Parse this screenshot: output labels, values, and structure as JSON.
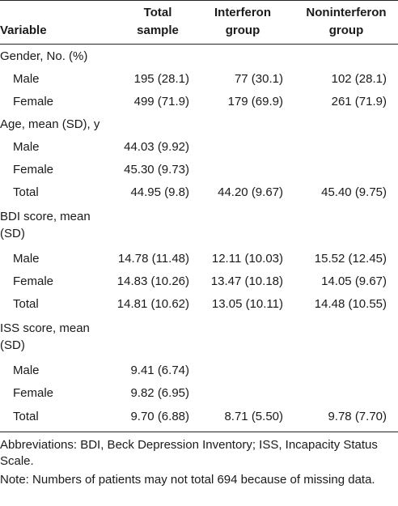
{
  "header": {
    "variable": "Variable",
    "col1": "Total sample",
    "col2": "Interferon group",
    "col3": "Noninterferon group"
  },
  "rows": [
    {
      "label": "Gender, No. (%)",
      "c1": "",
      "c2": "",
      "c3": ""
    },
    {
      "label": "Male",
      "c1": "195 (28.1)",
      "c2": "77 (30.1)",
      "c3": "102 (28.1)"
    },
    {
      "label": "Female",
      "c1": "499 (71.9)",
      "c2": "179 (69.9)",
      "c3": "261 (71.9)"
    },
    {
      "label": "Age, mean (SD), y",
      "c1": "",
      "c2": "",
      "c3": ""
    },
    {
      "label": "Male",
      "c1": "44.03 (9.92)",
      "c2": "",
      "c3": ""
    },
    {
      "label": "Female",
      "c1": "45.30 (9.73)",
      "c2": "",
      "c3": ""
    },
    {
      "label": "Total",
      "c1": "44.95 (9.8)",
      "c2": "44.20 (9.67)",
      "c3": "45.40 (9.75)"
    },
    {
      "label": "BDI score, mean (SD)",
      "c1": "",
      "c2": "",
      "c3": ""
    },
    {
      "label": "Male",
      "c1": "14.78 (11.48)",
      "c2": "12.11 (10.03)",
      "c3": "15.52 (12.45)"
    },
    {
      "label": "Female",
      "c1": "14.83 (10.26)",
      "c2": "13.47 (10.18)",
      "c3": "14.05 (9.67)"
    },
    {
      "label": "Total",
      "c1": "14.81 (10.62)",
      "c2": "13.05 (10.11)",
      "c3": "14.48 (10.55)"
    },
    {
      "label": "ISS score, mean (SD)",
      "c1": "",
      "c2": "",
      "c3": ""
    },
    {
      "label": "Male",
      "c1": "9.41 (6.74)",
      "c2": "",
      "c3": ""
    },
    {
      "label": "Female",
      "c1": "9.82 (6.95)",
      "c2": "",
      "c3": ""
    },
    {
      "label": "Total",
      "c1": "9.70 (6.88)",
      "c2": "8.71 (5.50)",
      "c3": "9.78 (7.70)"
    }
  ],
  "footnotes": {
    "abbreviations": "Abbreviations: BDI, Beck Depression Inventory; ISS, Incapacity Status Scale.",
    "note": "Note: Numbers of patients may not total 694 because of missing data."
  }
}
